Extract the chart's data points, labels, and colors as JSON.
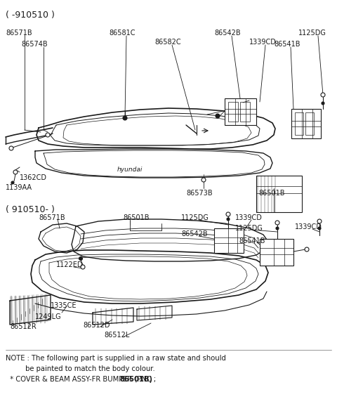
{
  "bg_color": "#ffffff",
  "line_color": "#1a1a1a",
  "section1_label": "( -910510 )",
  "section2_label": "( 910510- )",
  "note_line1": "NOTE : The following part is supplied in a raw state and should",
  "note_line2": "         be painted to match the body colour.",
  "note_line3_a": "  * COVER & BEAM ASSY-FR BUMPER (PNC ; ",
  "note_line3_b": "86501B)",
  "figw": 4.8,
  "figh": 5.85,
  "dpi": 100
}
